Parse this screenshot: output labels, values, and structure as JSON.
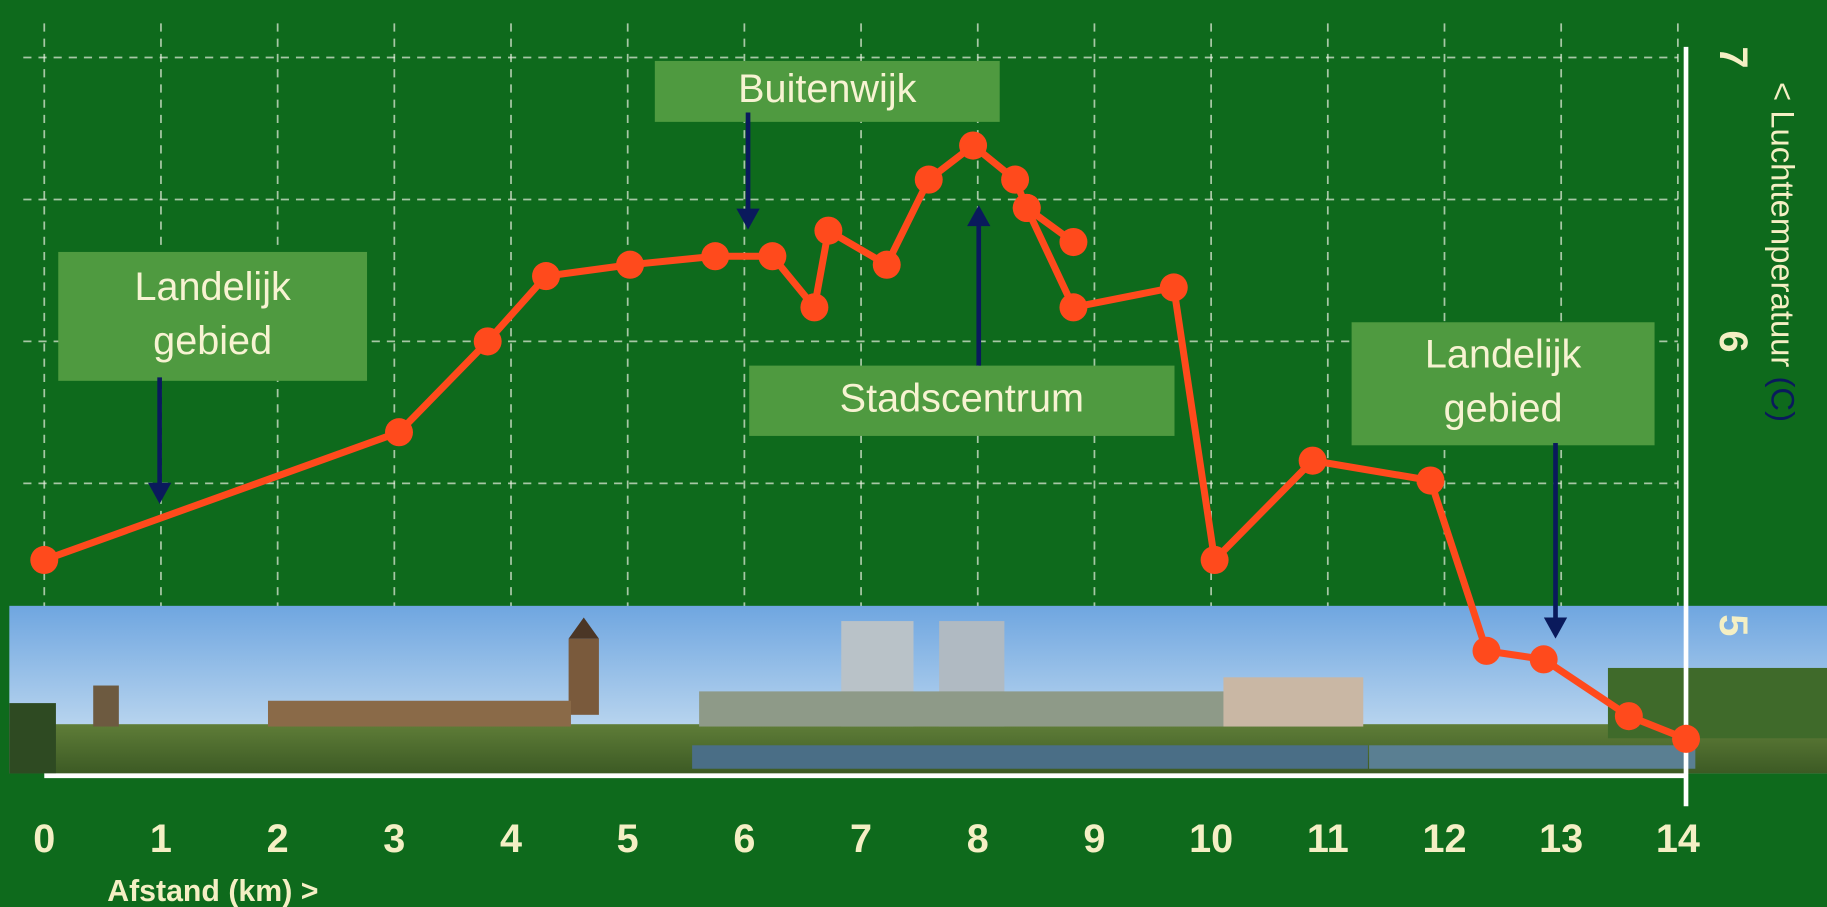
{
  "chart_data": {
    "type": "line",
    "x": [
      0,
      3.04,
      3.8,
      4.3,
      5.02,
      5.75,
      6.24,
      6.6,
      6.72,
      7.22,
      7.58,
      7.96,
      8.32,
      8.42,
      8.82,
      null,
      8.42,
      8.82,
      9.68,
      10.03,
      10.87,
      11.88,
      12.36,
      12.85,
      13.58,
      14.07
    ],
    "values": [
      5.23,
      5.68,
      6.0,
      6.23,
      6.27,
      6.3,
      6.3,
      6.12,
      6.39,
      6.27,
      6.57,
      6.69,
      6.57,
      6.47,
      6.35,
      null,
      6.47,
      6.12,
      6.19,
      5.23,
      5.58,
      5.51,
      4.91,
      4.88,
      4.68,
      4.6
    ],
    "color": "#ff4a1c",
    "xlim": [
      0,
      14
    ],
    "xticks": [
      0,
      1,
      2,
      3,
      4,
      5,
      6,
      7,
      8,
      9,
      10,
      11,
      12,
      13,
      14
    ],
    "ylim": [
      4.47,
      7.12
    ],
    "yticks": [
      5,
      6,
      7
    ],
    "y_minor_ticks": [
      5.5,
      6.5
    ],
    "grid": true,
    "x_label": "Afstand (km) >",
    "y_label": "< Luchttemperatuur",
    "y_label_unit": "(C)",
    "annotations": [
      {
        "lines": [
          "Landelijk",
          "gebied"
        ]
      },
      {
        "lines": [
          "Buitenwijk"
        ]
      },
      {
        "lines": [
          "Stadscentrum"
        ]
      },
      {
        "lines": [
          "Landelijk",
          "gebied"
        ]
      }
    ]
  }
}
